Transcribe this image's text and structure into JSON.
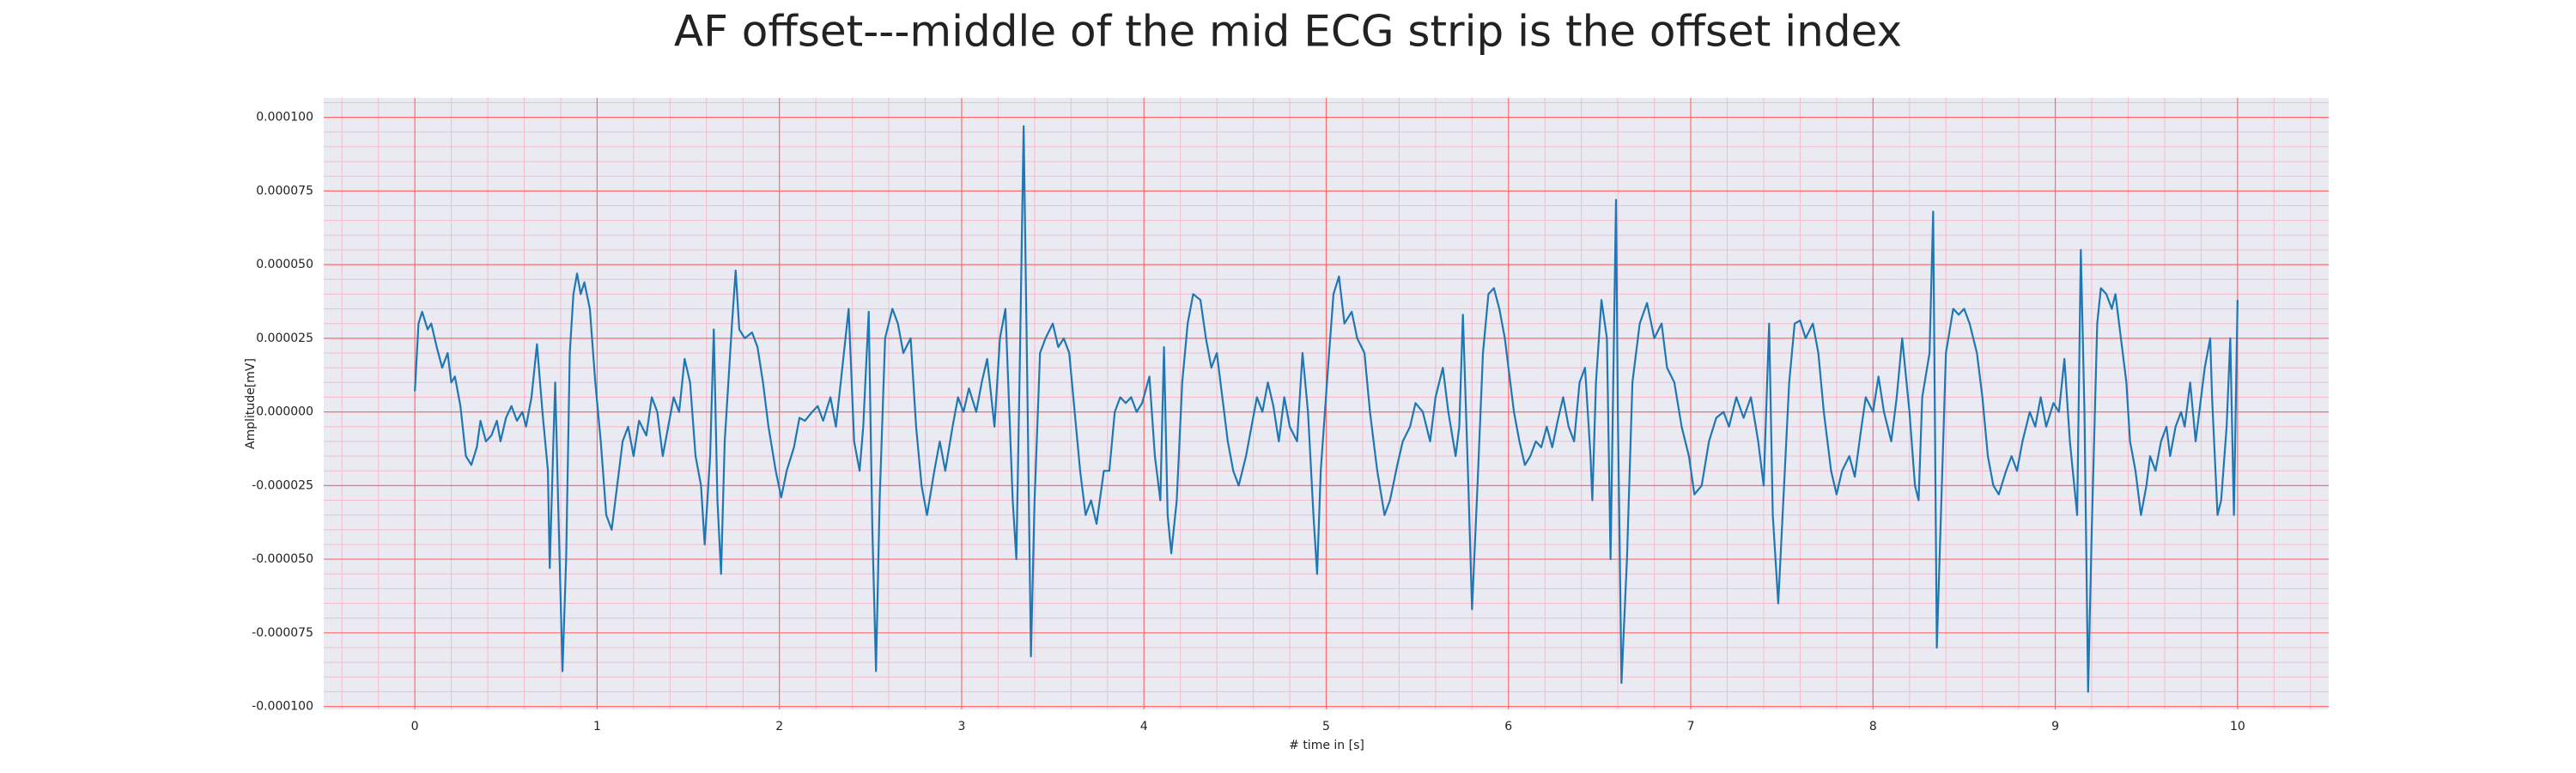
{
  "chart_data": {
    "type": "line",
    "title": "AF offset---middle of the mid ECG strip is the offset index",
    "x_label": "# time in [s]",
    "y_label": "Amplitude[mV]",
    "background": "#eaeaf2",
    "grid": true,
    "grid_color": "#ff6b6b",
    "minor_grid": true,
    "minor_grid_color": "#f4bccb",
    "xlim": [
      -0.5,
      10.5
    ],
    "ylim": [
      -0.000101,
      0.0001066
    ],
    "xticks": [
      0,
      1,
      2,
      3,
      4,
      5,
      6,
      7,
      8,
      9,
      10
    ],
    "yticks": [
      {
        "value": -0.0001,
        "label": "-0.000100"
      },
      {
        "value": -7.5e-05,
        "label": "-0.000075"
      },
      {
        "value": -5e-05,
        "label": "-0.000050"
      },
      {
        "value": -2.5e-05,
        "label": "-0.000025"
      },
      {
        "value": 0,
        "label": "0.000000"
      },
      {
        "value": 2.5e-05,
        "label": "0.000025"
      },
      {
        "value": 5e-05,
        "label": "0.000050"
      },
      {
        "value": 7.5e-05,
        "label": "0.000075"
      },
      {
        "value": 0.0001,
        "label": "0.000100"
      }
    ],
    "x": [
      0,
      0.02,
      0.04,
      0.07,
      0.09,
      0.12,
      0.15,
      0.18,
      0.2,
      0.22,
      0.25,
      0.28,
      0.31,
      0.34,
      0.36,
      0.39,
      0.42,
      0.45,
      0.47,
      0.5,
      0.53,
      0.56,
      0.59,
      0.61,
      0.64,
      0.67,
      0.7,
      0.73,
      0.74,
      0.76,
      0.77,
      0.79,
      0.81,
      0.83,
      0.85,
      0.87,
      0.89,
      0.91,
      0.93,
      0.96,
      0.99,
      1.02,
      1.05,
      1.08,
      1.11,
      1.14,
      1.17,
      1.2,
      1.23,
      1.27,
      1.3,
      1.33,
      1.36,
      1.39,
      1.42,
      1.45,
      1.48,
      1.51,
      1.54,
      1.57,
      1.59,
      1.62,
      1.64,
      1.66,
      1.68,
      1.7,
      1.74,
      1.76,
      1.78,
      1.81,
      1.85,
      1.88,
      1.91,
      1.94,
      1.98,
      2.01,
      2.04,
      2.08,
      2.11,
      2.14,
      2.18,
      2.21,
      2.24,
      2.28,
      2.31,
      2.34,
      2.38,
      2.41,
      2.44,
      2.46,
      2.49,
      2.51,
      2.53,
      2.55,
      2.58,
      2.62,
      2.65,
      2.68,
      2.72,
      2.75,
      2.78,
      2.81,
      2.85,
      2.88,
      2.91,
      2.95,
      2.98,
      3.01,
      3.04,
      3.08,
      3.11,
      3.14,
      3.18,
      3.21,
      3.24,
      3.28,
      3.3,
      3.32,
      3.34,
      3.36,
      3.38,
      3.4,
      3.43,
      3.46,
      3.5,
      3.53,
      3.56,
      3.59,
      3.62,
      3.65,
      3.68,
      3.71,
      3.74,
      3.78,
      3.81,
      3.84,
      3.87,
      3.9,
      3.93,
      3.96,
      3.99,
      4.03,
      4.06,
      4.09,
      4.11,
      4.13,
      4.15,
      4.18,
      4.21,
      4.24,
      4.27,
      4.31,
      4.34,
      4.37,
      4.4,
      4.43,
      4.46,
      4.49,
      4.52,
      4.56,
      4.59,
      4.62,
      4.65,
      4.68,
      4.71,
      4.74,
      4.77,
      4.8,
      4.84,
      4.87,
      4.9,
      4.93,
      4.95,
      4.97,
      5.01,
      5.04,
      5.07,
      5.1,
      5.14,
      5.17,
      5.21,
      5.24,
      5.28,
      5.32,
      5.35,
      5.39,
      5.42,
      5.46,
      5.49,
      5.53,
      5.57,
      5.6,
      5.64,
      5.67,
      5.71,
      5.73,
      5.75,
      5.78,
      5.8,
      5.83,
      5.86,
      5.89,
      5.92,
      5.95,
      5.98,
      6.0,
      6.03,
      6.06,
      6.09,
      6.12,
      6.15,
      6.18,
      6.21,
      6.24,
      6.27,
      6.3,
      6.33,
      6.36,
      6.39,
      6.42,
      6.45,
      6.46,
      6.48,
      6.51,
      6.54,
      6.56,
      6.59,
      6.6,
      6.62,
      6.65,
      6.68,
      6.72,
      6.76,
      6.8,
      6.84,
      6.87,
      6.91,
      6.95,
      6.99,
      7.02,
      7.06,
      7.1,
      7.14,
      7.18,
      7.21,
      7.25,
      7.29,
      7.33,
      7.37,
      7.4,
      7.43,
      7.45,
      7.48,
      7.5,
      7.54,
      7.57,
      7.6,
      7.63,
      7.67,
      7.7,
      7.73,
      7.77,
      7.8,
      7.83,
      7.87,
      7.9,
      7.93,
      7.96,
      8.0,
      8.03,
      8.06,
      8.1,
      8.13,
      8.16,
      8.2,
      8.23,
      8.25,
      8.27,
      8.31,
      8.33,
      8.35,
      8.37,
      8.4,
      8.44,
      8.47,
      8.5,
      8.53,
      8.57,
      8.6,
      8.63,
      8.66,
      8.69,
      8.73,
      8.76,
      8.79,
      8.82,
      8.86,
      8.89,
      8.92,
      8.95,
      8.99,
      9.02,
      9.05,
      9.08,
      9.12,
      9.14,
      9.16,
      9.18,
      9.2,
      9.23,
      9.25,
      9.28,
      9.31,
      9.33,
      9.36,
      9.39,
      9.41,
      9.44,
      9.47,
      9.5,
      9.52,
      9.55,
      9.58,
      9.61,
      9.63,
      9.66,
      9.69,
      9.71,
      9.74,
      9.77,
      9.79,
      9.82,
      9.85,
      9.86,
      9.89,
      9.91,
      9.94,
      9.96,
      9.98,
      10.0
    ],
    "series": [
      {
        "color": "#1f77b4",
        "values": [
          7e-06,
          3e-05,
          3.4e-05,
          2.8e-05,
          3e-05,
          2.2e-05,
          1.5e-05,
          2e-05,
          1e-05,
          1.2e-05,
          2e-06,
          -1.5e-05,
          -1.8e-05,
          -1.2e-05,
          -3e-06,
          -1e-05,
          -8e-06,
          -3e-06,
          -1e-05,
          -2e-06,
          2e-06,
          -3e-06,
          0,
          -5e-06,
          5e-06,
          2.3e-05,
          0,
          -2e-05,
          -5.3e-05,
          -1e-05,
          1e-05,
          -4e-05,
          -8.8e-05,
          -5e-05,
          2e-05,
          4e-05,
          4.7e-05,
          4e-05,
          4.4e-05,
          3.5e-05,
          1e-05,
          -1e-05,
          -3.5e-05,
          -4e-05,
          -2.5e-05,
          -1e-05,
          -5e-06,
          -1.5e-05,
          -3e-06,
          -8e-06,
          5e-06,
          0,
          -1.5e-05,
          -5e-06,
          5e-06,
          0,
          1.8e-05,
          1e-05,
          -1.5e-05,
          -2.5e-05,
          -4.5e-05,
          -1.5e-05,
          2.8e-05,
          -3e-05,
          -5.5e-05,
          -1e-05,
          3e-05,
          4.8e-05,
          2.8e-05,
          2.5e-05,
          2.7e-05,
          2.2e-05,
          1e-05,
          -5e-06,
          -2e-05,
          -2.9e-05,
          -2e-05,
          -1.2e-05,
          -2e-06,
          -3e-06,
          0,
          2e-06,
          -3e-06,
          5e-06,
          -5e-06,
          1.2e-05,
          3.5e-05,
          -1e-05,
          -2e-05,
          -5e-06,
          3.4e-05,
          -4e-05,
          -8.8e-05,
          -3e-05,
          2.5e-05,
          3.5e-05,
          3e-05,
          2e-05,
          2.5e-05,
          -5e-06,
          -2.5e-05,
          -3.5e-05,
          -2e-05,
          -1e-05,
          -2e-05,
          -5e-06,
          5e-06,
          0,
          8e-06,
          0,
          1e-05,
          1.8e-05,
          -5e-06,
          2.5e-05,
          3.5e-05,
          -3e-05,
          -5e-05,
          2e-05,
          9.7e-05,
          1e-05,
          -8.3e-05,
          -3e-05,
          2e-05,
          2.5e-05,
          3e-05,
          2.2e-05,
          2.5e-05,
          2e-05,
          0,
          -2e-05,
          -3.5e-05,
          -3e-05,
          -3.8e-05,
          -2e-05,
          -2e-05,
          0,
          5e-06,
          3e-06,
          5e-06,
          0,
          3e-06,
          1.2e-05,
          -1.5e-05,
          -3e-05,
          2.2e-05,
          -3.5e-05,
          -4.8e-05,
          -3e-05,
          1e-05,
          3e-05,
          4e-05,
          3.8e-05,
          2.5e-05,
          1.5e-05,
          2e-05,
          5e-06,
          -1e-05,
          -2e-05,
          -2.5e-05,
          -1.5e-05,
          -5e-06,
          5e-06,
          0,
          1e-05,
          2e-06,
          -1e-05,
          5e-06,
          -5e-06,
          -1e-05,
          2e-05,
          0,
          -3.5e-05,
          -5.5e-05,
          -2e-05,
          1.5e-05,
          4e-05,
          4.6e-05,
          3e-05,
          3.4e-05,
          2.5e-05,
          2e-05,
          0,
          -2e-05,
          -3.5e-05,
          -3e-05,
          -1.8e-05,
          -1e-05,
          -5e-06,
          3e-06,
          0,
          -1e-05,
          5e-06,
          1.5e-05,
          0,
          -1.5e-05,
          -5e-06,
          3.3e-05,
          -2.5e-05,
          -6.7e-05,
          -2.5e-05,
          2e-05,
          4e-05,
          4.2e-05,
          3.5e-05,
          2.5e-05,
          1.5e-05,
          0,
          -1e-05,
          -1.8e-05,
          -1.5e-05,
          -1e-05,
          -1.2e-05,
          -5e-06,
          -1.2e-05,
          -3e-06,
          5e-06,
          -5e-06,
          -1e-05,
          1e-05,
          1.5e-05,
          -1.5e-05,
          -3e-05,
          1e-05,
          3.8e-05,
          2.5e-05,
          -5e-05,
          7.2e-05,
          0,
          -9.2e-05,
          -5e-05,
          1e-05,
          3e-05,
          3.7e-05,
          2.5e-05,
          3e-05,
          1.5e-05,
          1e-05,
          -5e-06,
          -1.5e-05,
          -2.8e-05,
          -2.5e-05,
          -1e-05,
          -2e-06,
          0,
          -5e-06,
          5e-06,
          -2e-06,
          5e-06,
          -1e-05,
          -2.5e-05,
          3e-05,
          -3.5e-05,
          -6.5e-05,
          -4e-05,
          1e-05,
          3e-05,
          3.1e-05,
          2.5e-05,
          3e-05,
          2e-05,
          0,
          -2e-05,
          -2.8e-05,
          -2e-05,
          -1.5e-05,
          -2.2e-05,
          -8e-06,
          5e-06,
          0,
          1.2e-05,
          0,
          -1e-05,
          5e-06,
          2.5e-05,
          0,
          -2.5e-05,
          -3e-05,
          5e-06,
          2e-05,
          6.8e-05,
          -8e-05,
          -4e-05,
          2e-05,
          3.5e-05,
          3.3e-05,
          3.5e-05,
          3e-05,
          2e-05,
          5e-06,
          -1.5e-05,
          -2.5e-05,
          -2.8e-05,
          -2e-05,
          -1.5e-05,
          -2e-05,
          -1e-05,
          0,
          -5e-06,
          5e-06,
          -5e-06,
          3e-06,
          0,
          1.8e-05,
          -1e-05,
          -3.5e-05,
          5.5e-05,
          0,
          -9.5e-05,
          -4e-05,
          3e-05,
          4.2e-05,
          4e-05,
          3.5e-05,
          4e-05,
          2.5e-05,
          1e-05,
          -1e-05,
          -2e-05,
          -3.5e-05,
          -2.5e-05,
          -1.5e-05,
          -2e-05,
          -1e-05,
          -5e-06,
          -1.5e-05,
          -5e-06,
          0,
          -5e-06,
          1e-05,
          -1e-05,
          0,
          1.5e-05,
          2.5e-05,
          5e-06,
          -3.5e-05,
          -3e-05,
          -5e-06,
          2.5e-05,
          -3.5e-05,
          3.8e-05
        ]
      }
    ]
  }
}
